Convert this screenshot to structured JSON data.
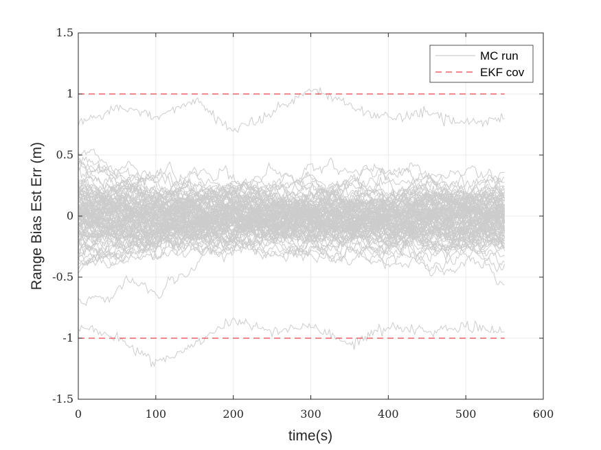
{
  "chart_data": {
    "type": "line",
    "title": "",
    "xlabel": "time(s)",
    "ylabel": "Range Bias Est Err (m)",
    "xlim": [
      0,
      600
    ],
    "ylim": [
      -1.5,
      1.5
    ],
    "grid": true,
    "legend_position": "top-right",
    "x_ticks": [
      0,
      100,
      200,
      300,
      400,
      500,
      600
    ],
    "x_tick_labels": [
      "0",
      "100",
      "200",
      "300",
      "400",
      "500",
      "600"
    ],
    "y_ticks": [
      -1.5,
      -1,
      -0.5,
      0,
      0.5,
      1,
      1.5
    ],
    "y_tick_labels": [
      "-1.5",
      "-1",
      "-0.5",
      "0",
      "0.5",
      "1",
      "1.5"
    ],
    "colors": {
      "mc_run": "#cccccc",
      "ekf_cov": "#e8414a",
      "axis": "#262626",
      "grid": "#ebebeb"
    },
    "legend": [
      {
        "label": "MC run",
        "style": "solid",
        "color": "#cccccc"
      },
      {
        "label": "EKF cov",
        "style": "dashed",
        "color": "#e8414a"
      }
    ],
    "mc_runs": {
      "count": 100,
      "x_range": [
        0,
        550
      ],
      "approx_std_bounds": [
        -1.0,
        1.0
      ],
      "observed_extremes": [
        -1.22,
        1.1
      ],
      "representative_runs": [
        {
          "x": [
            0,
            50,
            100,
            150,
            200,
            250,
            300,
            350,
            400,
            450,
            500,
            550
          ],
          "y": [
            0.05,
            -0.1,
            0.2,
            0.1,
            -0.2,
            0.0,
            0.3,
            0.1,
            -0.1,
            0.2,
            0.1,
            0.15
          ]
        },
        {
          "x": [
            0,
            50,
            100,
            150,
            200,
            250,
            300,
            350,
            400,
            450,
            500,
            550
          ],
          "y": [
            0.75,
            0.9,
            0.8,
            0.95,
            0.7,
            0.85,
            1.05,
            0.9,
            0.8,
            0.85,
            0.75,
            0.8
          ]
        },
        {
          "x": [
            0,
            50,
            100,
            150,
            200,
            250,
            300,
            350,
            400,
            450,
            500,
            550
          ],
          "y": [
            -0.9,
            -1.0,
            -1.2,
            -1.05,
            -0.85,
            -0.95,
            -0.9,
            -1.05,
            -0.9,
            -0.95,
            -0.9,
            -0.95
          ]
        }
      ]
    },
    "series": [
      {
        "name": "EKF cov",
        "x": [
          0,
          550
        ],
        "y": [
          1,
          1
        ]
      },
      {
        "name": "EKF cov",
        "x": [
          0,
          550
        ],
        "y": [
          -1,
          -1
        ]
      }
    ]
  }
}
